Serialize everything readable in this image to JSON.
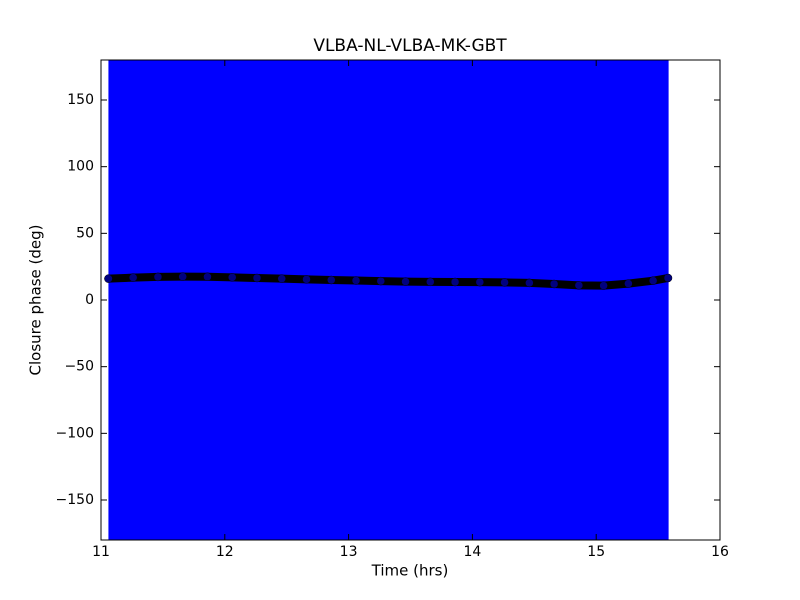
{
  "chart_data": {
    "type": "errorbar",
    "title": "VLBA-NL-VLBA-MK-GBT",
    "xlabel": "Time (hrs)",
    "ylabel": "Closure phase (deg)",
    "x": [
      11.06,
      11.26,
      11.46,
      11.66,
      11.86,
      12.06,
      12.26,
      12.46,
      12.66,
      12.86,
      13.06,
      13.26,
      13.46,
      13.66,
      13.86,
      14.06,
      14.26,
      14.46,
      14.66,
      14.86,
      15.06,
      15.26,
      15.46,
      15.58
    ],
    "series": [
      {
        "color": "#0000ff",
        "marker_color": "#000000",
        "values": [
          16,
          16.8,
          17.3,
          17.5,
          17.4,
          17,
          16.5,
          16,
          15.5,
          15,
          14.6,
          14.2,
          13.8,
          13.6,
          13.5,
          13.4,
          13.2,
          12.8,
          12,
          11,
          10.8,
          12.3,
          14.5,
          16.5
        ],
        "errors": [
          200,
          200,
          200,
          200,
          200,
          200,
          200,
          200,
          200,
          200,
          200,
          200,
          200,
          200,
          200,
          200,
          200,
          200,
          200,
          200,
          200,
          200,
          200,
          200
        ]
      }
    ],
    "xlim": [
      11,
      16
    ],
    "xticks": [
      11,
      12,
      13,
      14,
      15,
      16
    ],
    "ylim": [
      -180,
      180
    ],
    "yticks": [
      -150,
      -100,
      -50,
      0,
      50,
      100,
      150
    ]
  }
}
